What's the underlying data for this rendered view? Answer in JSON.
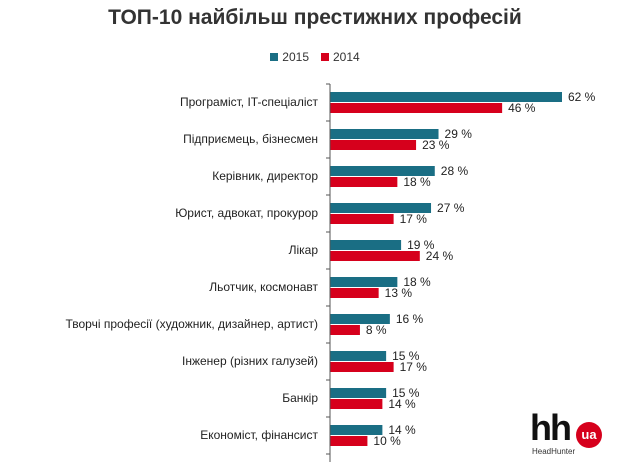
{
  "colors": {
    "series_2015": "#1a6e84",
    "series_2014": "#d6001c",
    "axis": "#555555"
  },
  "logo": {
    "brand": "hh",
    "badge": "ua",
    "subtitle": "HeadHunter"
  },
  "chart_data": {
    "type": "bar",
    "orientation": "horizontal",
    "title": "ТОП-10 найбільш престижних професій",
    "legend_position": "top",
    "value_suffix": " %",
    "xlim": [
      0,
      62
    ],
    "grid": false,
    "categories": [
      "Програміст, IT-спеціаліст",
      "Підприємець, бізнесмен",
      "Керівник, директор",
      "Юрист, адвокат, прокурор",
      "Лікар",
      "Льотчик, космонавт",
      "Творчі професії (художник, дизайнер, артист)",
      "Інженер (різних галузей)",
      "Банкір",
      "Економіст, фінансист"
    ],
    "series": [
      {
        "name": "2015",
        "color": "#1a6e84",
        "values": [
          62,
          29,
          28,
          27,
          19,
          18,
          16,
          15,
          15,
          14
        ]
      },
      {
        "name": "2014",
        "color": "#d6001c",
        "values": [
          46,
          23,
          18,
          17,
          24,
          13,
          8,
          17,
          14,
          10
        ]
      }
    ]
  }
}
